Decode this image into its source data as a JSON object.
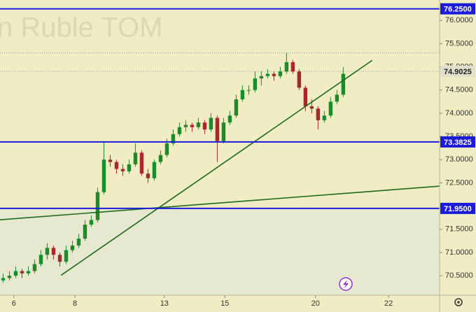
{
  "chart_data": {
    "type": "candlestick",
    "watermark": "n Ruble TOM",
    "xlim": [
      -0.5,
      69.3
    ],
    "xticks": [
      {
        "value": 1.7,
        "label": "6"
      },
      {
        "value": 11.4,
        "label": "8"
      },
      {
        "value": 25.6,
        "label": "13"
      },
      {
        "value": 35.2,
        "label": "15"
      },
      {
        "value": 49.6,
        "label": "20"
      },
      {
        "value": 61.2,
        "label": "22"
      }
    ],
    "ylim": [
      70.08,
      76.44
    ],
    "yticks": [
      {
        "value": 76.0,
        "label": "76.0000"
      },
      {
        "value": 75.5,
        "label": "75.5000"
      },
      {
        "value": 75.0,
        "label": "75.0000"
      },
      {
        "value": 74.5,
        "label": "74.5000"
      },
      {
        "value": 74.0,
        "label": "74.0000"
      },
      {
        "value": 73.5,
        "label": "73.5000"
      },
      {
        "value": 73.0,
        "label": "73.0000"
      },
      {
        "value": 72.5,
        "label": "72.5000"
      },
      {
        "value": 72.0,
        "label": "72.0000"
      },
      {
        "value": 71.5,
        "label": "71.5000"
      },
      {
        "value": 71.0,
        "label": "71.0000"
      },
      {
        "value": 70.5,
        "label": "70.5000"
      }
    ],
    "up_color": "#1f8a2a",
    "down_color": "#a52a2a",
    "open": [
      70.4,
      70.45,
      70.5,
      70.6,
      70.55,
      70.6,
      70.75,
      70.95,
      71.1,
      70.95,
      70.8,
      71.05,
      71.15,
      71.3,
      71.6,
      71.7,
      72.3,
      73.0,
      72.95,
      72.8,
      72.75,
      72.9,
      73.15,
      72.7,
      72.6,
      72.95,
      73.1,
      73.35,
      73.55,
      73.7,
      73.75,
      73.7,
      73.8,
      73.65,
      73.9,
      73.4,
      73.8,
      73.95,
      74.3,
      74.5,
      74.5,
      74.75,
      74.8,
      74.85,
      74.8,
      74.9,
      75.1,
      74.9,
      74.55,
      74.15,
      74.1,
      73.85,
      73.95,
      74.25,
      74.4
    ],
    "high": [
      70.55,
      70.6,
      70.7,
      70.65,
      70.7,
      70.85,
      71.05,
      71.2,
      71.15,
      71.0,
      71.15,
      71.25,
      71.4,
      71.7,
      71.8,
      72.4,
      73.4,
      73.1,
      73.0,
      72.9,
      73.0,
      73.35,
      73.2,
      72.8,
      73.0,
      73.2,
      73.45,
      73.65,
      73.8,
      73.85,
      73.8,
      73.9,
      73.85,
      74.0,
      73.95,
      73.9,
      74.05,
      74.4,
      74.6,
      74.6,
      74.9,
      74.9,
      74.95,
      74.9,
      75.0,
      75.3,
      75.15,
      74.95,
      74.6,
      74.3,
      74.15,
      74.05,
      74.35,
      74.5,
      75.0
    ],
    "low": [
      70.35,
      70.4,
      70.45,
      70.45,
      70.5,
      70.55,
      70.7,
      70.85,
      70.85,
      70.7,
      70.75,
      71.0,
      71.1,
      71.25,
      71.55,
      71.65,
      72.25,
      72.85,
      72.7,
      72.65,
      72.7,
      72.85,
      72.65,
      72.5,
      72.55,
      72.9,
      73.05,
      73.3,
      73.5,
      73.6,
      73.6,
      73.65,
      73.55,
      73.6,
      72.95,
      73.35,
      73.75,
      73.9,
      74.25,
      74.4,
      74.45,
      74.6,
      74.75,
      74.7,
      74.75,
      74.85,
      74.85,
      74.5,
      74.05,
      74.0,
      73.65,
      73.8,
      73.9,
      74.2,
      74.35
    ],
    "close": [
      70.45,
      70.5,
      70.6,
      70.55,
      70.6,
      70.75,
      70.95,
      71.1,
      70.95,
      70.8,
      71.05,
      71.15,
      71.3,
      71.6,
      71.7,
      72.3,
      73.0,
      72.95,
      72.8,
      72.75,
      72.9,
      73.15,
      72.7,
      72.6,
      72.95,
      73.1,
      73.35,
      73.55,
      73.7,
      73.75,
      73.7,
      73.8,
      73.65,
      73.9,
      73.4,
      73.8,
      73.95,
      74.3,
      74.5,
      74.5,
      74.75,
      74.8,
      74.85,
      74.8,
      74.9,
      75.1,
      74.9,
      74.55,
      74.15,
      74.1,
      73.85,
      73.95,
      74.25,
      74.4,
      74.85
    ],
    "levels": [
      {
        "value": 76.25,
        "label": "76.2500",
        "color": "#1c1cd8"
      },
      {
        "value": 73.3825,
        "label": "73.3825",
        "color": "#1c1cd8"
      },
      {
        "value": 71.95,
        "label": "71.9500",
        "color": "#1c1cd8"
      }
    ],
    "reference_lines": [
      75.3
    ],
    "current_price": {
      "value": 74.9025,
      "label": "74.9025"
    },
    "trendlines": [
      {
        "x": [
          9.2,
          58.6
        ],
        "y": [
          70.51,
          75.14
        ],
        "color": "#1f6a1f"
      },
      {
        "x": [
          -0.5,
          69.3
        ],
        "y": [
          71.705,
          72.43
        ],
        "color": "#1f6a1f"
      }
    ]
  }
}
